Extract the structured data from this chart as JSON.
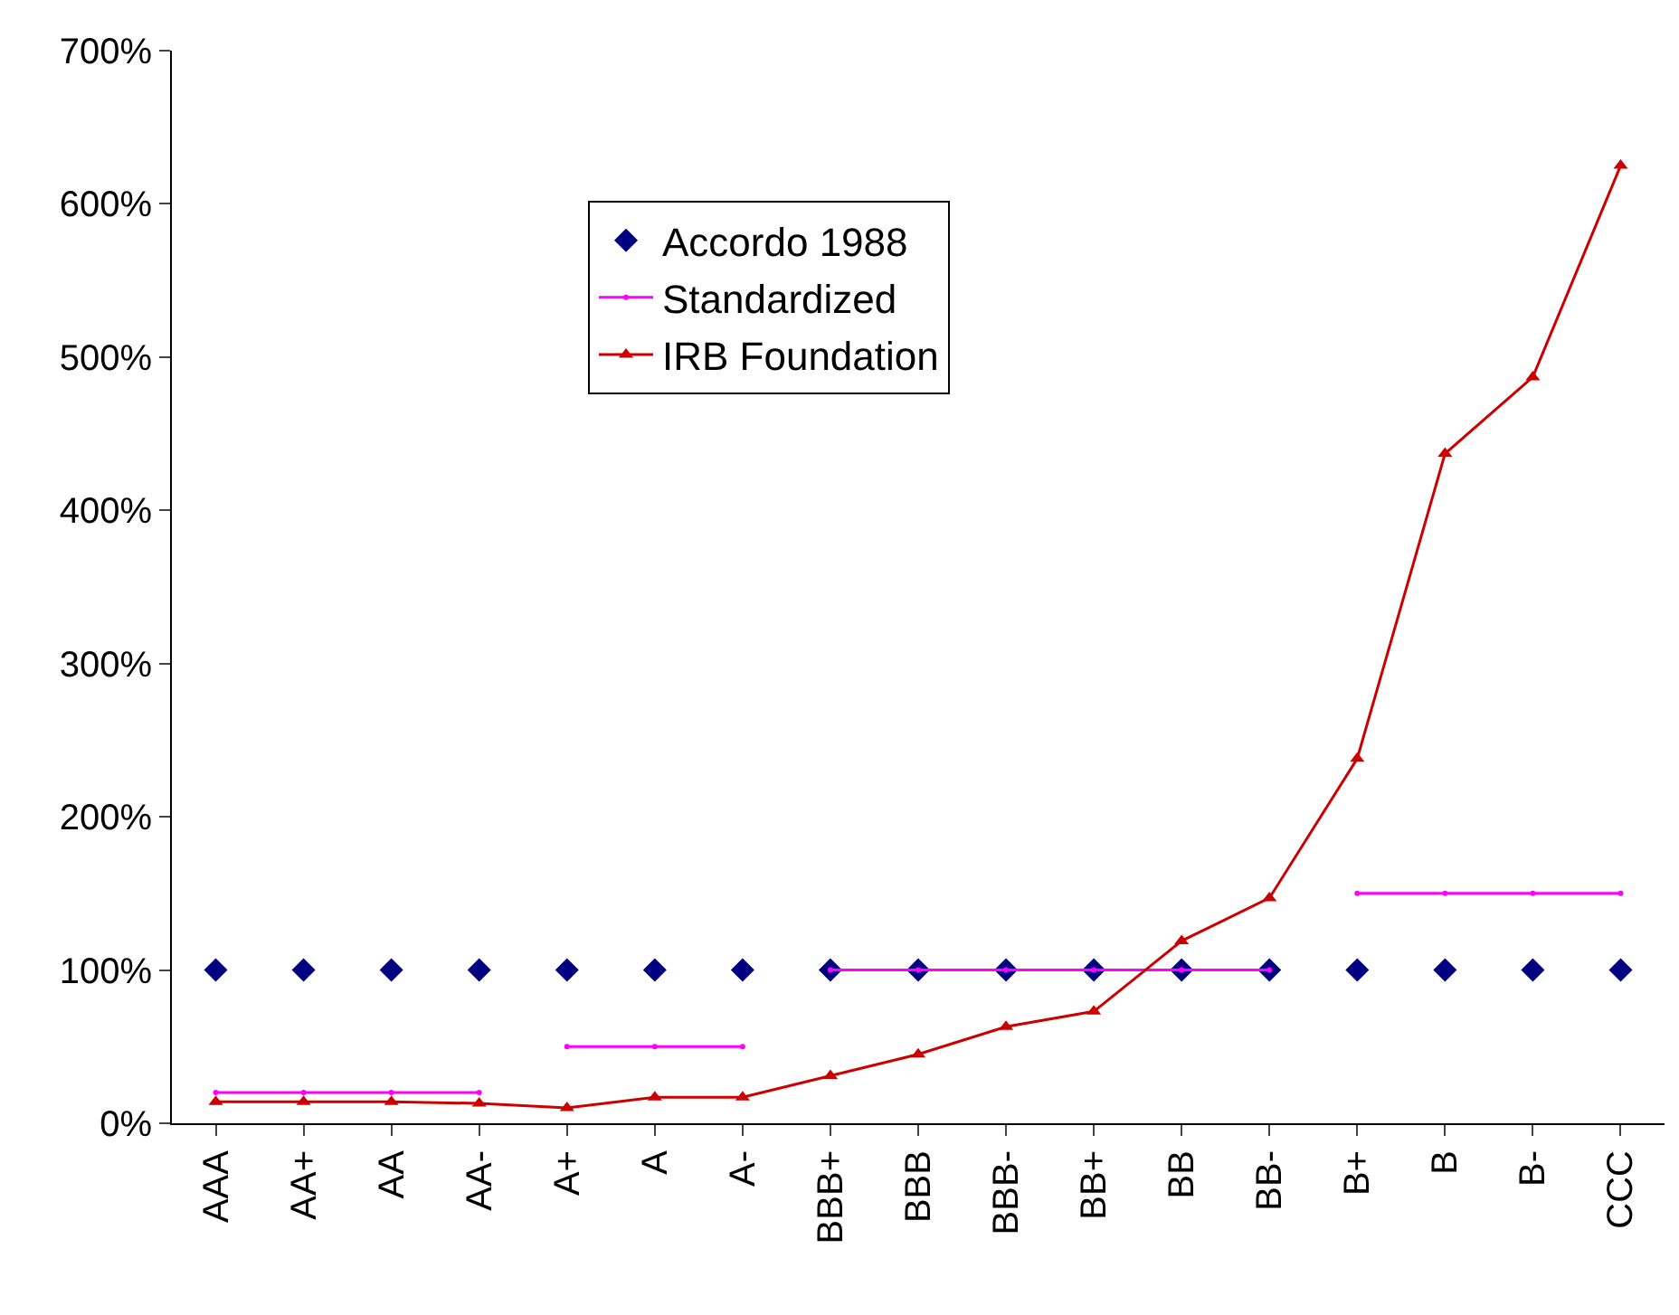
{
  "chart_data": {
    "type": "line",
    "categories": [
      "AAA",
      "AA+",
      "AA",
      "AA-",
      "A+",
      "A",
      "A-",
      "BBB+",
      "BBB",
      "BBB-",
      "BB+",
      "BB",
      "BB-",
      "B+",
      "B",
      "B-",
      "CCC"
    ],
    "series": [
      {
        "name": "Accordo 1988",
        "type": "scatter",
        "marker": "diamond",
        "color": "#000080",
        "values": [
          100,
          100,
          100,
          100,
          100,
          100,
          100,
          100,
          100,
          100,
          100,
          100,
          100,
          100,
          100,
          100,
          100
        ]
      },
      {
        "name": "Standardized",
        "marker": "circle",
        "color": "#ff00ff",
        "values": [
          20,
          20,
          20,
          20,
          50,
          50,
          50,
          100,
          100,
          100,
          100,
          100,
          100,
          150,
          150,
          150,
          150
        ]
      },
      {
        "name": "IRB Foundation",
        "marker": "triangle",
        "color": "#cc0000",
        "values": [
          14,
          14,
          14,
          13,
          10,
          17,
          17,
          31,
          45,
          63,
          73,
          119,
          147,
          238,
          437,
          487,
          625
        ]
      }
    ],
    "ylim": [
      0,
      700
    ],
    "yticks": [
      {
        "value": 0,
        "label": "0%"
      },
      {
        "value": 100,
        "label": "100%"
      },
      {
        "value": 200,
        "label": "200%"
      },
      {
        "value": 300,
        "label": "300%"
      },
      {
        "value": 400,
        "label": "400%"
      },
      {
        "value": 500,
        "label": "500%"
      },
      {
        "value": 600,
        "label": "600%"
      },
      {
        "value": 700,
        "label": "700%"
      }
    ],
    "grid": false,
    "legend": "top"
  }
}
